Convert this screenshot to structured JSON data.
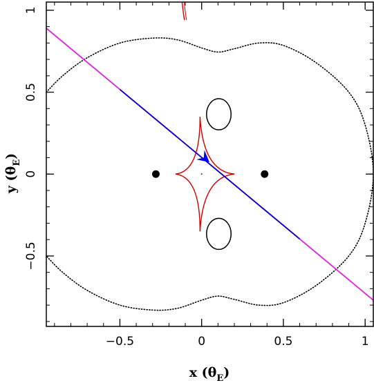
{
  "chart_data": {
    "type": "scatter",
    "xlim": [
      -0.95,
      1.05
    ],
    "ylim": [
      -0.93,
      1.05
    ],
    "xticks": [
      -0.5,
      0,
      0.5,
      1
    ],
    "yticks": [
      -0.5,
      0,
      0.5,
      1
    ],
    "xtick_labels": [
      "−0.5",
      "0",
      "0.5",
      "1"
    ],
    "ytick_labels": [
      "−0.5",
      "0",
      "0.5",
      "1"
    ],
    "xlabel": {
      "main": "x (θ",
      "sub": "E",
      "close": ")"
    },
    "ylabel": {
      "main": "y (θ",
      "sub": "E",
      "close": ")"
    },
    "grid": false,
    "colors": {
      "critical_curve": "#000000",
      "caustic": "#cc0000",
      "trajectory_outer": "#e020e0",
      "trajectory_inner": "#0000cc",
      "arrow": "#0000ee",
      "lens": "#000000"
    },
    "lenses": [
      {
        "x": -0.28,
        "y": 0.0
      },
      {
        "x": 0.385,
        "y": 0.0
      }
    ],
    "critical_curve_outer": {
      "x": [
        -0.95,
        -0.85,
        -0.7,
        -0.5,
        -0.3,
        -0.15,
        0,
        0.1,
        0.2,
        0.35,
        0.5,
        0.7,
        0.9,
        1.0,
        1.05,
        1.0,
        0.9,
        0.7,
        0.5,
        0.35,
        0.2,
        0.1,
        0,
        -0.15,
        -0.3,
        -0.5,
        -0.7,
        -0.85,
        -0.95
      ],
      "y": [
        0.5,
        0.6,
        0.71,
        0.8,
        0.83,
        0.82,
        0.77,
        0.745,
        0.765,
        0.8,
        0.785,
        0.68,
        0.5,
        0.3,
        0.0,
        -0.3,
        -0.5,
        -0.68,
        -0.785,
        -0.8,
        -0.765,
        -0.745,
        -0.77,
        -0.82,
        -0.83,
        -0.8,
        -0.71,
        -0.6,
        -0.5
      ]
    },
    "critical_ovals": [
      {
        "cx": 0.105,
        "cy": 0.365,
        "rx": 0.075,
        "ry": 0.095
      },
      {
        "cx": 0.105,
        "cy": -0.365,
        "rx": 0.075,
        "ry": 0.095
      }
    ],
    "caustic_central": {
      "cusps": [
        {
          "x": -0.01,
          "y": 0.35
        },
        {
          "x": 0.2,
          "y": 0.0
        },
        {
          "x": -0.01,
          "y": -0.35
        },
        {
          "x": -0.16,
          "y": 0.0
        }
      ],
      "center": {
        "x": 0.0,
        "y": 0.0
      }
    },
    "caustic_top_fragment": {
      "x": [
        -0.12,
        -0.115,
        -0.11,
        -0.105
      ],
      "y": [
        1.05,
        1.01,
        0.97,
        0.94
      ]
    },
    "trajectory": {
      "x": [
        -0.95,
        1.05
      ],
      "y": [
        0.89,
        -0.77
      ],
      "inner_segment_x": [
        -0.5,
        0.6
      ]
    },
    "arrow": {
      "x": 0.02,
      "y": 0.095,
      "direction": "down-right"
    }
  }
}
